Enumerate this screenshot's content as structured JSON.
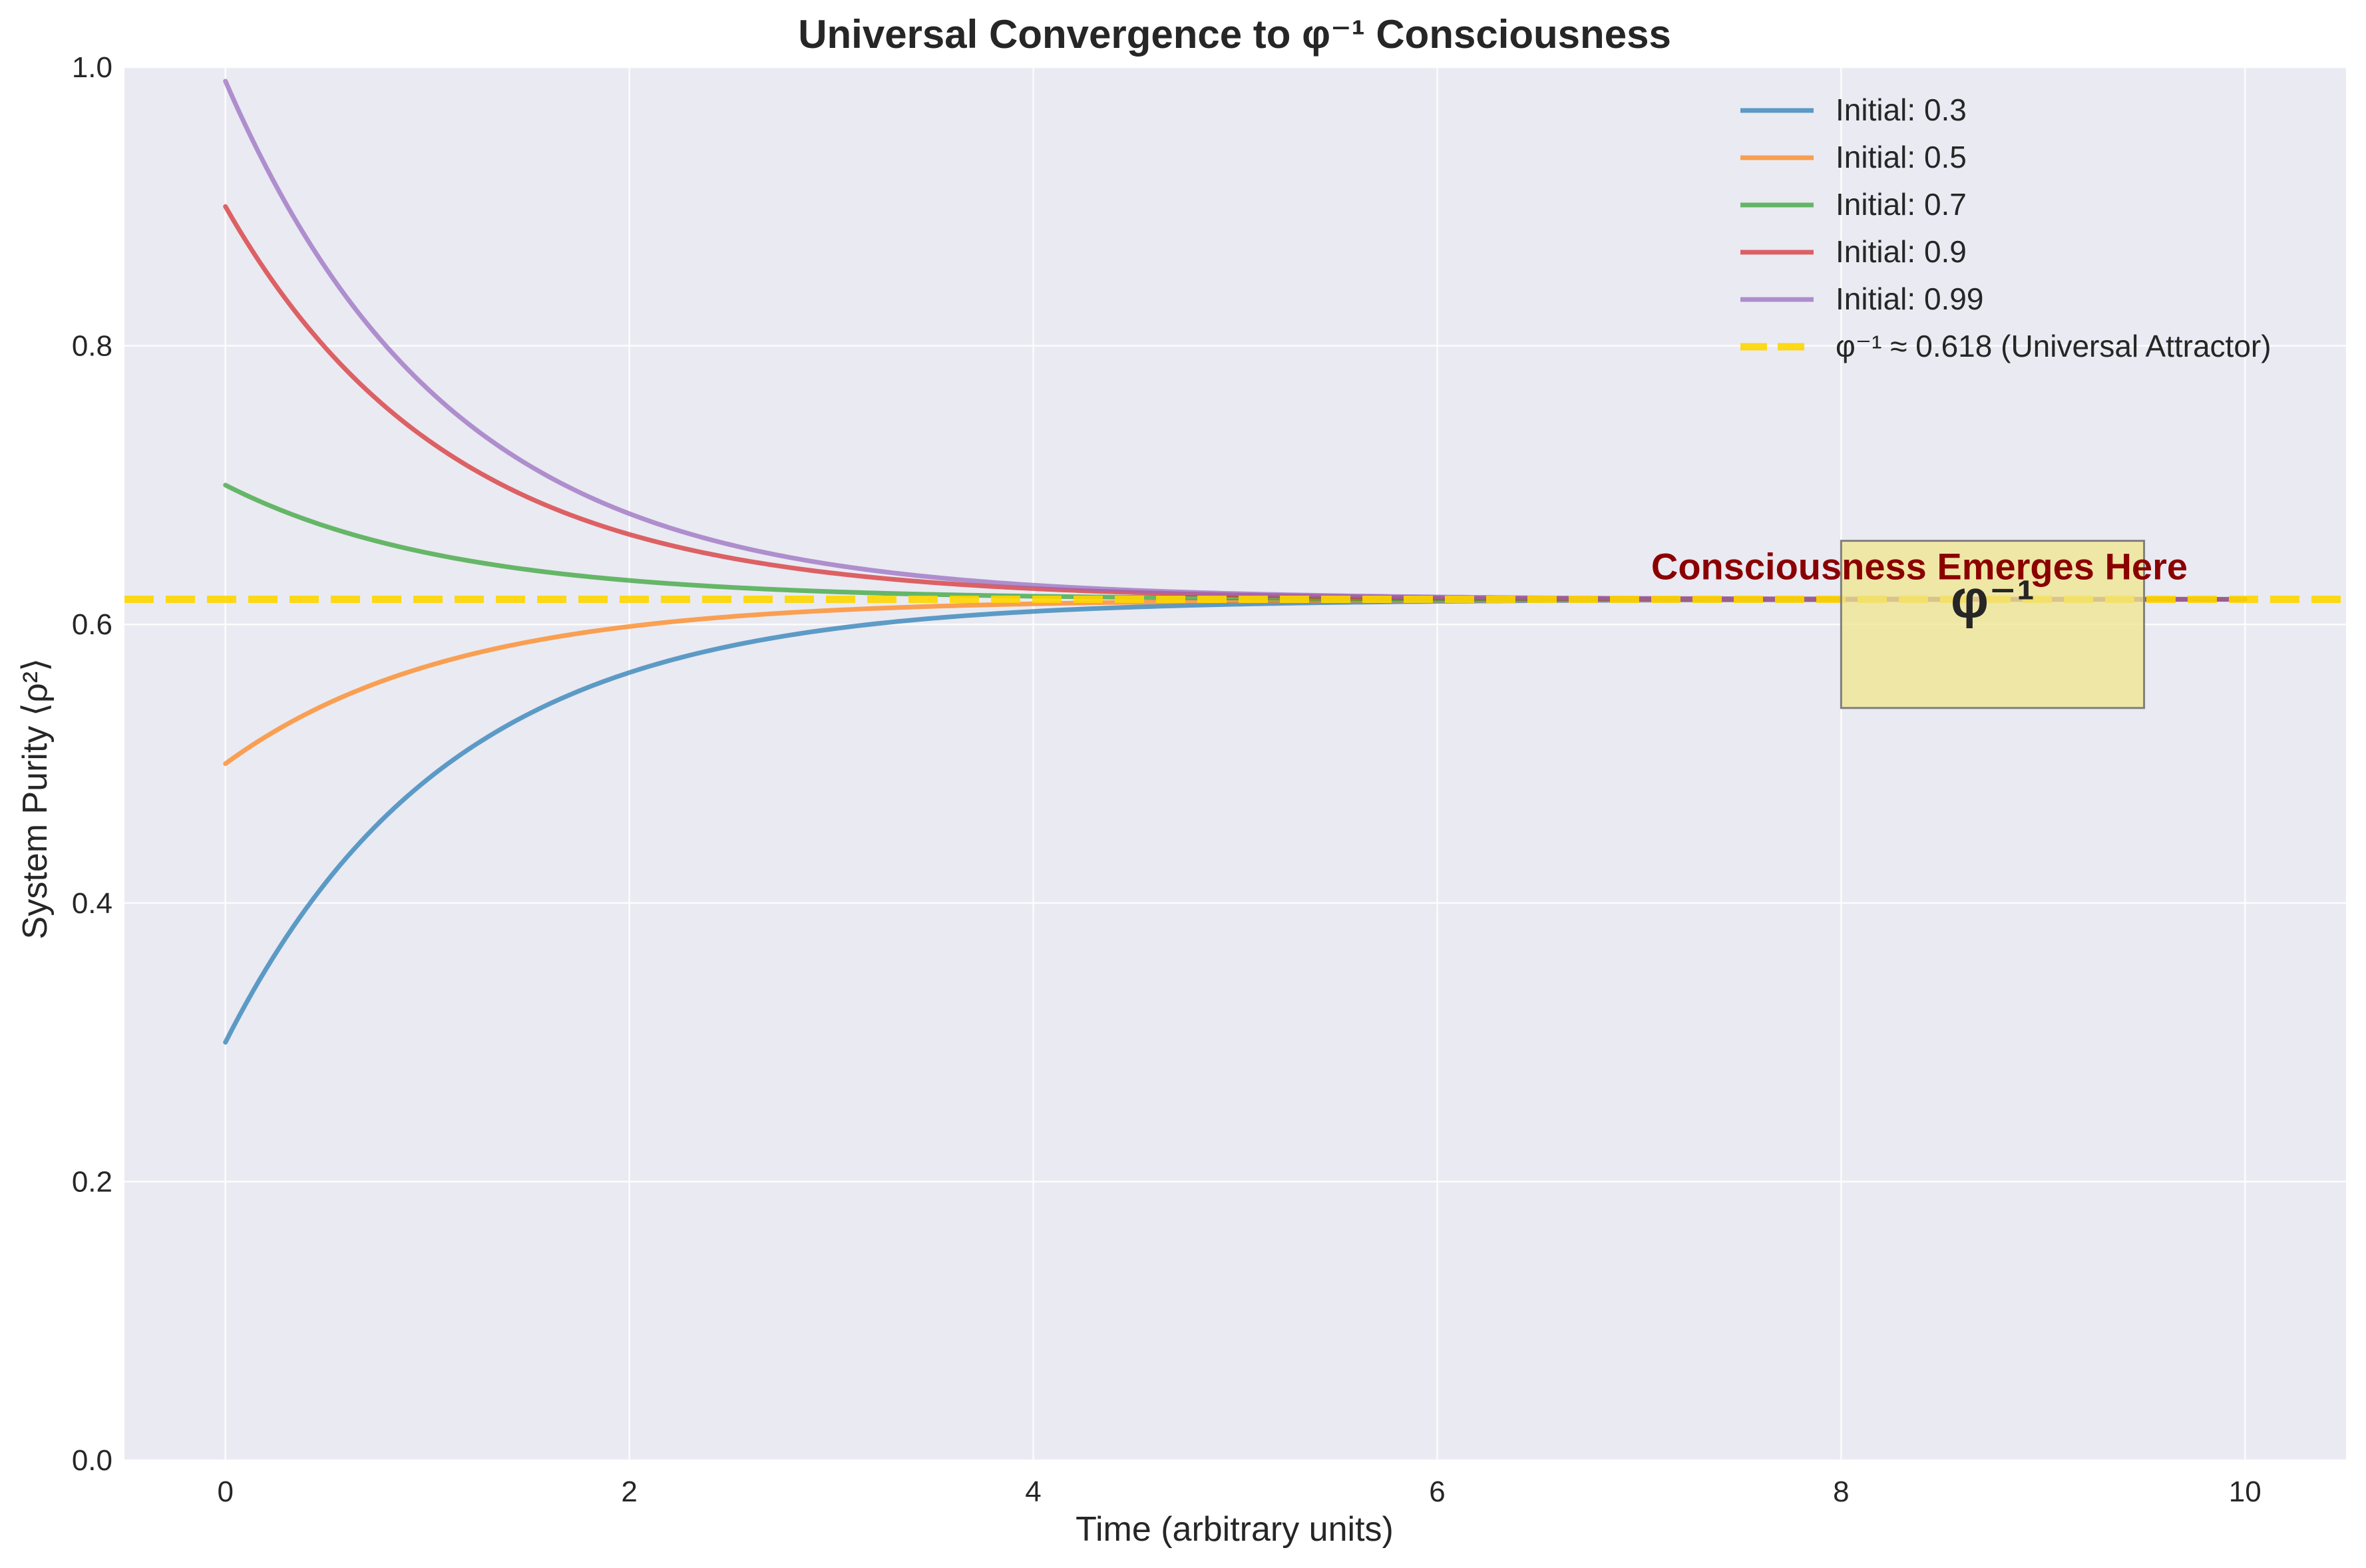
{
  "chart_data": {
    "type": "line",
    "title": "Universal Convergence to φ⁻¹ Consciousness",
    "xlabel": "Time (arbitrary units)",
    "ylabel": "System Purity ⟨ρ²⟩",
    "xlim": [
      -0.5,
      10.5
    ],
    "ylim": [
      0,
      1.0
    ],
    "xticks": [
      0,
      2,
      4,
      6,
      8,
      10
    ],
    "xtick_labels": [
      "0",
      "2",
      "4",
      "6",
      "8",
      "10"
    ],
    "yticks": [
      0,
      0.2,
      0.4,
      0.6,
      0.8,
      1.0
    ],
    "ytick_labels": [
      "0.0",
      "0.2",
      "0.4",
      "0.6",
      "0.8",
      "1.0"
    ],
    "grid": true,
    "legend_position": "top-right",
    "x_range": [
      0,
      10
    ],
    "series": [
      {
        "name": "Initial: 0.3",
        "initial": 0.3,
        "color": "#1f77b4",
        "decay_rate": 0.9
      },
      {
        "name": "Initial: 0.5",
        "initial": 0.5,
        "color": "#ff7f0e",
        "decay_rate": 0.9
      },
      {
        "name": "Initial: 0.7",
        "initial": 0.7,
        "color": "#2ca02c",
        "decay_rate": 0.9
      },
      {
        "name": "Initial: 0.9",
        "initial": 0.9,
        "color": "#d62728",
        "decay_rate": 0.9
      },
      {
        "name": "Initial: 0.99",
        "initial": 0.99,
        "color": "#9467bd",
        "decay_rate": 0.9
      }
    ],
    "reference_line": {
      "name": "φ⁻¹ ≈ 0.618 (Universal Attractor)",
      "value": 0.618,
      "color": "#ffd700",
      "style": "dashed"
    },
    "annotation": {
      "label": "Consciousness Emerges Here",
      "label_color": "#8b0000",
      "box_text": "φ⁻¹",
      "box_x_range": [
        8,
        9.5
      ],
      "box_y_range": [
        0.54,
        0.66
      ],
      "box_fill": "#f0e68c",
      "label_x": 8.4,
      "label_y": 0.64
    }
  }
}
